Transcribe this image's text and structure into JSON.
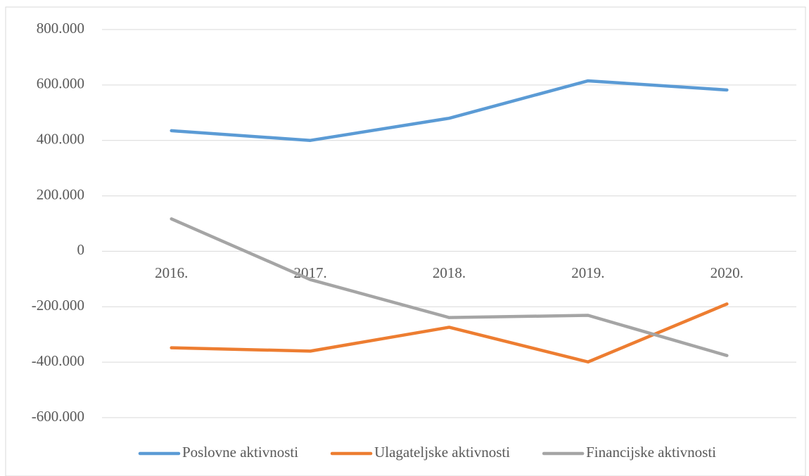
{
  "chart_data": {
    "type": "line",
    "categories": [
      "2016.",
      "2017.",
      "2018.",
      "2019.",
      "2020."
    ],
    "series": [
      {
        "name": "Poslovne aktivnosti",
        "color": "#5b9bd5",
        "values": [
          435000,
          400000,
          480000,
          615000,
          582000
        ]
      },
      {
        "name": "Ulagateljske aktivnosti",
        "color": "#ed7d31",
        "values": [
          -348000,
          -360000,
          -274000,
          -399000,
          -190000
        ]
      },
      {
        "name": "Financijske aktivnosti",
        "color": "#a5a5a5",
        "values": [
          117000,
          -102000,
          -239000,
          -231000,
          -376000
        ]
      }
    ],
    "ylim": [
      -600000,
      800000
    ],
    "yticks": [
      {
        "value": -600000,
        "label": "-600.000"
      },
      {
        "value": -400000,
        "label": "-400.000"
      },
      {
        "value": -200000,
        "label": "-200.000"
      },
      0,
      {
        "value": 200000,
        "label": "200.000"
      },
      {
        "value": 400000,
        "label": "400.000"
      },
      {
        "value": 600000,
        "label": "600.000"
      },
      {
        "value": 800000,
        "label": "800.000"
      }
    ],
    "grid": true,
    "legend": "bottom"
  }
}
